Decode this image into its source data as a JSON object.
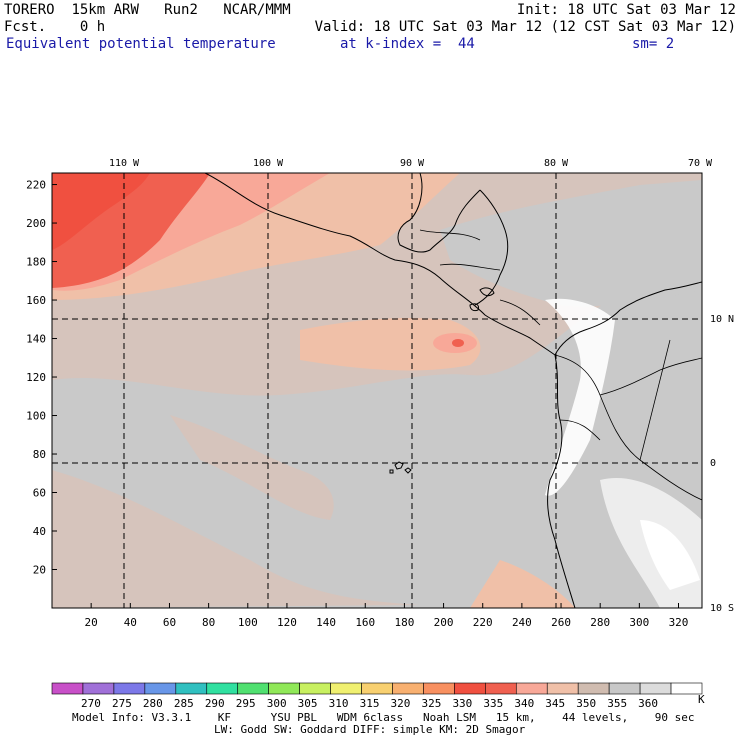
{
  "header": {
    "model": "TORERO",
    "resolution": "15km ARW",
    "run": "Run2",
    "org": "NCAR/MMM",
    "init": "Init: 18 UTC Sat 03 Mar 12",
    "fcst_label": "Fcst.",
    "fcst_value": "0 h",
    "valid": "Valid: 18 UTC Sat 03 Mar 12 (12 CST Sat 03 Mar 12)",
    "field": "Equivalent potential temperature",
    "level": "at k-index =  44",
    "smoothing": "sm= 2"
  },
  "map": {
    "lon_labels": [
      "110 W",
      "100 W",
      "90 W",
      "80 W",
      "70 W"
    ],
    "lat_labels": [
      "10 N",
      "0",
      "10 S"
    ],
    "x_ticks": [
      "20",
      "40",
      "60",
      "80",
      "100",
      "120",
      "140",
      "160",
      "180",
      "200",
      "220",
      "240",
      "260",
      "280",
      "300",
      "320"
    ],
    "y_ticks": [
      "20",
      "40",
      "60",
      "80",
      "100",
      "120",
      "140",
      "160",
      "180",
      "200",
      "220"
    ]
  },
  "colorbar": {
    "levels": [
      "270",
      "275",
      "280",
      "285",
      "290",
      "295",
      "300",
      "305",
      "310",
      "315",
      "320",
      "325",
      "330",
      "335",
      "340",
      "345",
      "350",
      "355",
      "360"
    ],
    "unit": "K",
    "colors": [
      "#c850c8",
      "#a070d8",
      "#7c78e8",
      "#6896e8",
      "#30c0c0",
      "#30e0a0",
      "#50e070",
      "#90e858",
      "#c8f060",
      "#f0f070",
      "#f8d070",
      "#f8b070",
      "#f89060",
      "#f05040",
      "#f06050",
      "#f8a898",
      "#f0c0a8",
      "#d0bcb0",
      "#c8c8c8",
      "#dcdcdc",
      "#ffffff"
    ]
  },
  "footer": {
    "line1": "Model Info: V3.3.1    KF      YSU PBL   WDM 6class   Noah LSM   15 km,    44 levels,    90 sec",
    "line2": "LW: Godd SW: Goddard DIFF: simple KM: 2D Smagor"
  }
}
